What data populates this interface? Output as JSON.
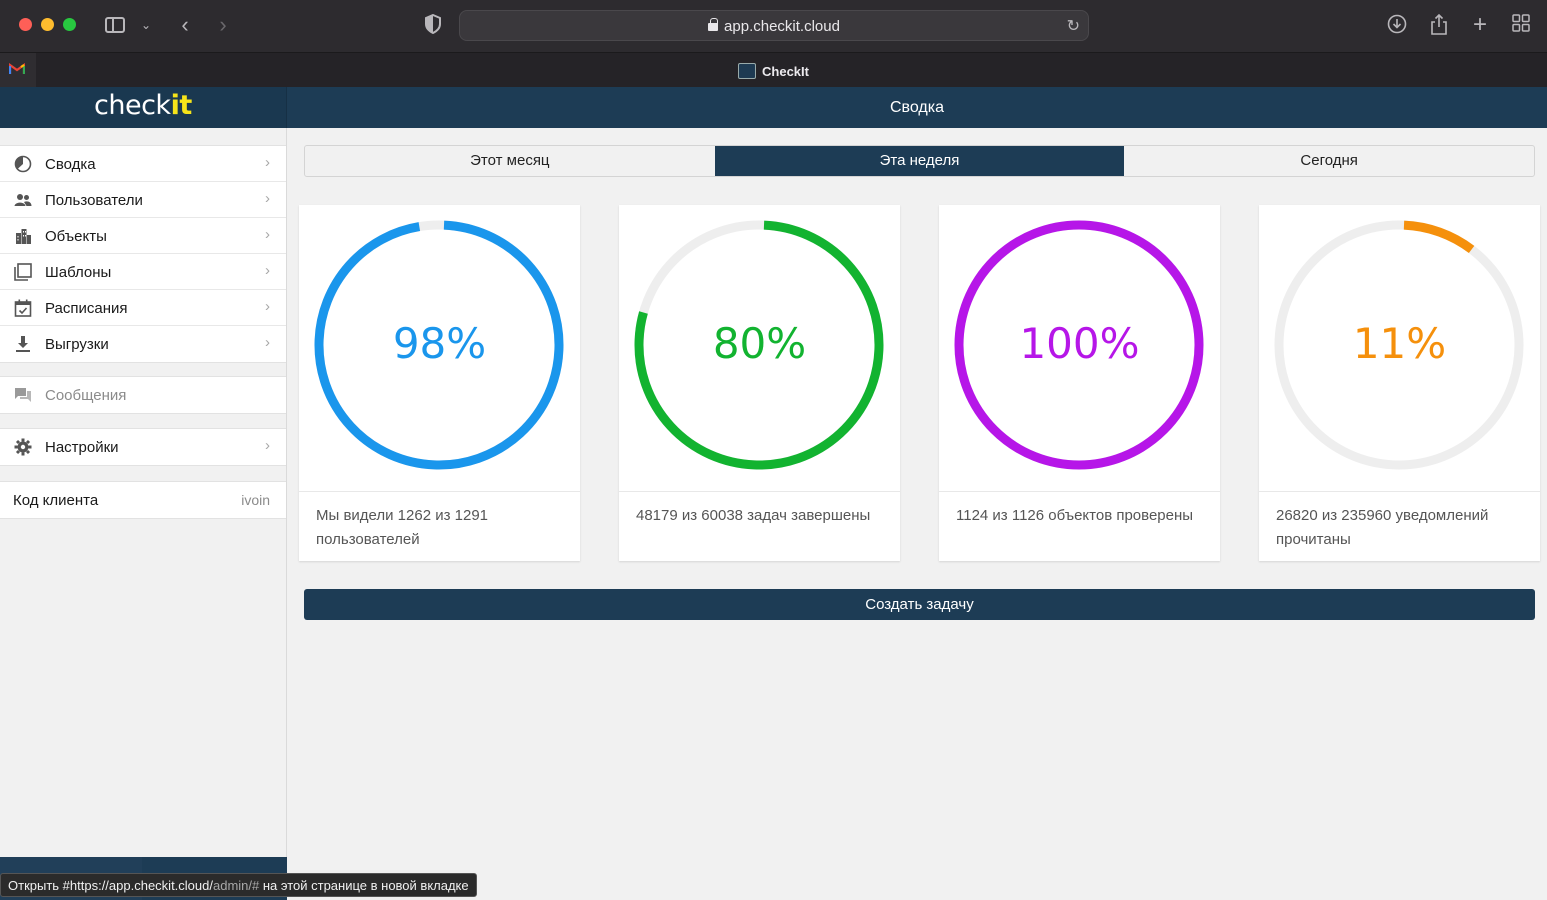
{
  "browser": {
    "url": "app.checkit.cloud",
    "tab_title": "CheckIt"
  },
  "app": {
    "brand_main": "check",
    "brand_highlight": "it",
    "page_title": "Сводка"
  },
  "sidebar": {
    "main_items": [
      {
        "label": "Сводка",
        "icon": "dashboard-icon"
      },
      {
        "label": "Пользователи",
        "icon": "users-icon"
      },
      {
        "label": "Объекты",
        "icon": "buildings-icon"
      },
      {
        "label": "Шаблоны",
        "icon": "templates-icon"
      },
      {
        "label": "Расписания",
        "icon": "calendar-icon"
      },
      {
        "label": "Выгрузки",
        "icon": "download-icon"
      }
    ],
    "messages_label": "Сообщения",
    "settings_label": "Настройки",
    "client_code_label": "Код клиента",
    "client_code_value": "ivoin"
  },
  "period_tabs": {
    "month": "Этот месяц",
    "week": "Эта неделя",
    "today": "Сегодня",
    "active": "week"
  },
  "stats": [
    {
      "percent_label": "98%",
      "fraction": 0.98,
      "color": "#1a96ec",
      "description": "Мы видели 1262 из 1291 пользователей"
    },
    {
      "percent_label": "80%",
      "fraction": 0.8,
      "color": "#12b330",
      "description": "48179 из 60038 задач завершены"
    },
    {
      "percent_label": "100%",
      "fraction": 1.0,
      "color": "#b616e8",
      "description": "1124 из 1126 объектов проверены"
    },
    {
      "percent_label": "11%",
      "fraction": 0.11,
      "color": "#f5900c",
      "description": "26820 из 235960 уведомлений прочитаны"
    }
  ],
  "create_task_label": "Создать задачу",
  "status_bar": {
    "prefix": "Открыть #https://app.checkit.cloud/",
    "path": "admin/#",
    "suffix": " на этой странице в новой вкладке"
  }
}
